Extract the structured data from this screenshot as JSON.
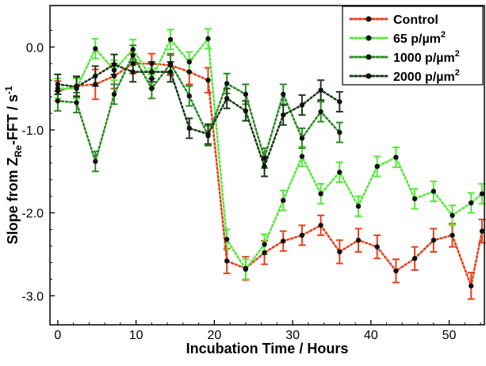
{
  "chart_data": {
    "type": "line",
    "title": "",
    "xlabel": "Incubation Time / Hours",
    "ylabel": "Slope from ZRe-FFT / s-1",
    "ylabel_parts": {
      "main": "Slope from Z",
      "sub": "Re",
      "mid": "-FFT / s",
      "sup": "-1"
    },
    "xlim": [
      -1,
      54.5
    ],
    "ylim": [
      -3.35,
      0.5
    ],
    "xticks": [
      0,
      10,
      20,
      30,
      40,
      50
    ],
    "xtick_labels": [
      "0",
      "10",
      "20",
      "30",
      "40",
      "50"
    ],
    "yticks": [
      0.0,
      -1.0,
      -2.0,
      -3.0
    ],
    "ytick_labels": [
      "0.0",
      "-1.0",
      "-2.0",
      "-3.0"
    ],
    "grid": false,
    "legend_position": "top-right",
    "series": [
      {
        "name": "Control",
        "legend": {
          "main": "Control",
          "sup": ""
        },
        "color": "#e8401c",
        "x": [
          0,
          2.4,
          4.8,
          7.2,
          9.6,
          12,
          14.4,
          16.8,
          19.2,
          21.6,
          24,
          26.4,
          28.8,
          31.2,
          33.6,
          36,
          38.4,
          40.8,
          43.2,
          45.6,
          48,
          50.4,
          52.8,
          54.2
        ],
        "y": [
          -0.53,
          -0.47,
          -0.45,
          -0.35,
          -0.2,
          -0.2,
          -0.22,
          -0.3,
          -0.4,
          -2.58,
          -2.67,
          -2.48,
          -2.34,
          -2.27,
          -2.15,
          -2.47,
          -2.33,
          -2.41,
          -2.7,
          -2.55,
          -2.33,
          -2.27,
          -2.88,
          -2.22
        ],
        "err": [
          0.12,
          0.12,
          0.18,
          0.15,
          0.12,
          0.12,
          0.12,
          0.15,
          0.15,
          0.15,
          0.14,
          0.14,
          0.12,
          0.12,
          0.12,
          0.14,
          0.14,
          0.14,
          0.14,
          0.14,
          0.14,
          0.14,
          0.16,
          0.14
        ]
      },
      {
        "name": "65 p/µm2",
        "legend": {
          "main": "65 p/µm",
          "sup": "2"
        },
        "color": "#55e83c",
        "x": [
          0,
          2.4,
          4.8,
          7.2,
          9.6,
          12,
          14.4,
          16.8,
          19.2,
          21.6,
          24,
          26.4,
          28.8,
          31.2,
          33.6,
          36,
          38.4,
          40.8,
          43.2,
          45.6,
          48,
          50.4,
          52.8,
          54.2
        ],
        "y": [
          -0.5,
          -0.5,
          -0.02,
          -0.28,
          -0.03,
          -0.38,
          0.09,
          -0.18,
          0.1,
          -2.32,
          -2.68,
          -2.38,
          -1.85,
          -1.32,
          -1.77,
          -1.51,
          -1.92,
          -1.44,
          -1.33,
          -1.83,
          -1.74,
          -2.03,
          -1.88,
          -1.77
        ]
      },
      {
        "name": "1000 p/µm2",
        "legend": {
          "main": "1000 p/µm",
          "sup": "2"
        },
        "color": "#2b8a23",
        "x": [
          0,
          2.4,
          4.8,
          7.2,
          9.6,
          12,
          14.4,
          16.8,
          19.2,
          21.6,
          24,
          26.4,
          28.8,
          31.2,
          33.6,
          36
        ],
        "y": [
          -0.65,
          -0.67,
          -1.38,
          -0.57,
          -0.1,
          -0.5,
          -0.2,
          -0.59,
          -1.07,
          -0.44,
          -0.57,
          -1.34,
          -0.57,
          -1.1,
          -0.78,
          -1.03
        ]
      },
      {
        "name": "2000 p/µm2",
        "legend": {
          "main": "2000 p/µm",
          "sup": "2"
        },
        "color": "#1c3d17",
        "x": [
          0,
          2.4,
          4.8,
          7.2,
          9.6,
          12,
          14.4,
          16.8,
          19.2,
          21.6,
          24,
          26.4,
          28.8,
          31.2,
          33.6,
          36
        ],
        "y": [
          -0.45,
          -0.48,
          -0.35,
          -0.21,
          -0.3,
          -0.3,
          -0.3,
          -0.98,
          -1.05,
          -0.62,
          -0.77,
          -1.44,
          -0.82,
          -0.7,
          -0.52,
          -0.66
        ]
      }
    ]
  }
}
